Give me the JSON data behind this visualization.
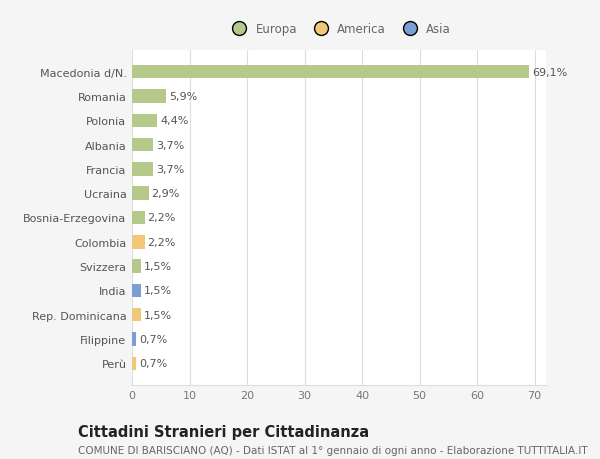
{
  "categories": [
    "Perù",
    "Filippine",
    "Rep. Dominicana",
    "India",
    "Svizzera",
    "Colombia",
    "Bosnia-Erzegovina",
    "Ucraina",
    "Francia",
    "Albania",
    "Polonia",
    "Romania",
    "Macedonia d/N."
  ],
  "values": [
    0.7,
    0.7,
    1.5,
    1.5,
    1.5,
    2.2,
    2.2,
    2.9,
    3.7,
    3.7,
    4.4,
    5.9,
    69.1
  ],
  "colors": [
    "#f0c878",
    "#7a9fd4",
    "#f0c878",
    "#7a9fd4",
    "#b5c98a",
    "#f0c878",
    "#b5c98a",
    "#b5c98a",
    "#b5c98a",
    "#b5c98a",
    "#b5c98a",
    "#b5c98a",
    "#b5c98a"
  ],
  "labels": [
    "0,7%",
    "0,7%",
    "1,5%",
    "1,5%",
    "1,5%",
    "2,2%",
    "2,2%",
    "2,9%",
    "3,7%",
    "3,7%",
    "4,4%",
    "5,9%",
    "69,1%"
  ],
  "legend": [
    {
      "label": "Europa",
      "color": "#b5c98a"
    },
    {
      "label": "America",
      "color": "#f0c878"
    },
    {
      "label": "Asia",
      "color": "#7a9fd4"
    }
  ],
  "xlim": [
    0,
    72
  ],
  "xticks": [
    0,
    10,
    20,
    30,
    40,
    50,
    60,
    70
  ],
  "title": "Cittadini Stranieri per Cittadinanza",
  "subtitle": "COMUNE DI BARISCIANO (AQ) - Dati ISTAT al 1° gennaio di ogni anno - Elaborazione TUTTITALIA.IT",
  "bg_color": "#f5f5f5",
  "plot_bg_color": "#ffffff",
  "grid_color": "#dddddd",
  "bar_height": 0.55,
  "label_fontsize": 8,
  "tick_fontsize": 8,
  "title_fontsize": 10.5,
  "subtitle_fontsize": 7.5
}
